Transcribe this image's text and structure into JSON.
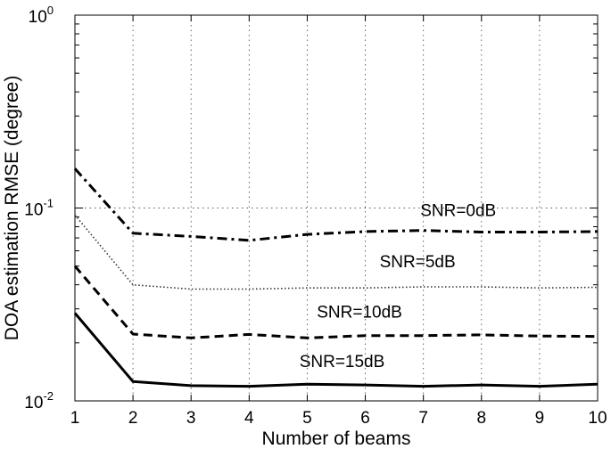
{
  "chart_data": {
    "type": "line",
    "xlabel": "Number of beams",
    "ylabel": "DOA estimation RMSE (degree)",
    "xlim": [
      1,
      10
    ],
    "ylim": [
      0.01,
      1
    ],
    "yscale": "log",
    "grid": true,
    "x": [
      1,
      2,
      3,
      4,
      5,
      6,
      7,
      8,
      9,
      10
    ],
    "x_tick_labels": [
      "1",
      "2",
      "3",
      "4",
      "5",
      "6",
      "7",
      "8",
      "9",
      "10"
    ],
    "y_ticks": [
      {
        "value": 0.01,
        "base": "10",
        "exp": "-2"
      },
      {
        "value": 0.1,
        "base": "10",
        "exp": "-1"
      },
      {
        "value": 1,
        "base": "10",
        "exp": "0"
      }
    ],
    "series": [
      {
        "name": "SNR=0dB",
        "style": "dashdot",
        "color": "#000000",
        "values": [
          0.16,
          0.074,
          0.0712,
          0.068,
          0.073,
          0.0755,
          0.0765,
          0.075,
          0.075,
          0.0755
        ]
      },
      {
        "name": "SNR=5dB",
        "style": "dotted",
        "color": "#333333",
        "values": [
          0.092,
          0.04,
          0.038,
          0.038,
          0.0385,
          0.0385,
          0.039,
          0.039,
          0.0385,
          0.0388
        ]
      },
      {
        "name": "SNR=10dB",
        "style": "dashed",
        "color": "#000000",
        "values": [
          0.05,
          0.0222,
          0.0212,
          0.0221,
          0.0212,
          0.0218,
          0.0218,
          0.022,
          0.0217,
          0.0216
        ]
      },
      {
        "name": "SNR=15dB",
        "style": "solid",
        "color": "#000000",
        "values": [
          0.0285,
          0.0126,
          0.012,
          0.0119,
          0.0122,
          0.0121,
          0.0119,
          0.0121,
          0.0119,
          0.0122
        ]
      }
    ]
  }
}
